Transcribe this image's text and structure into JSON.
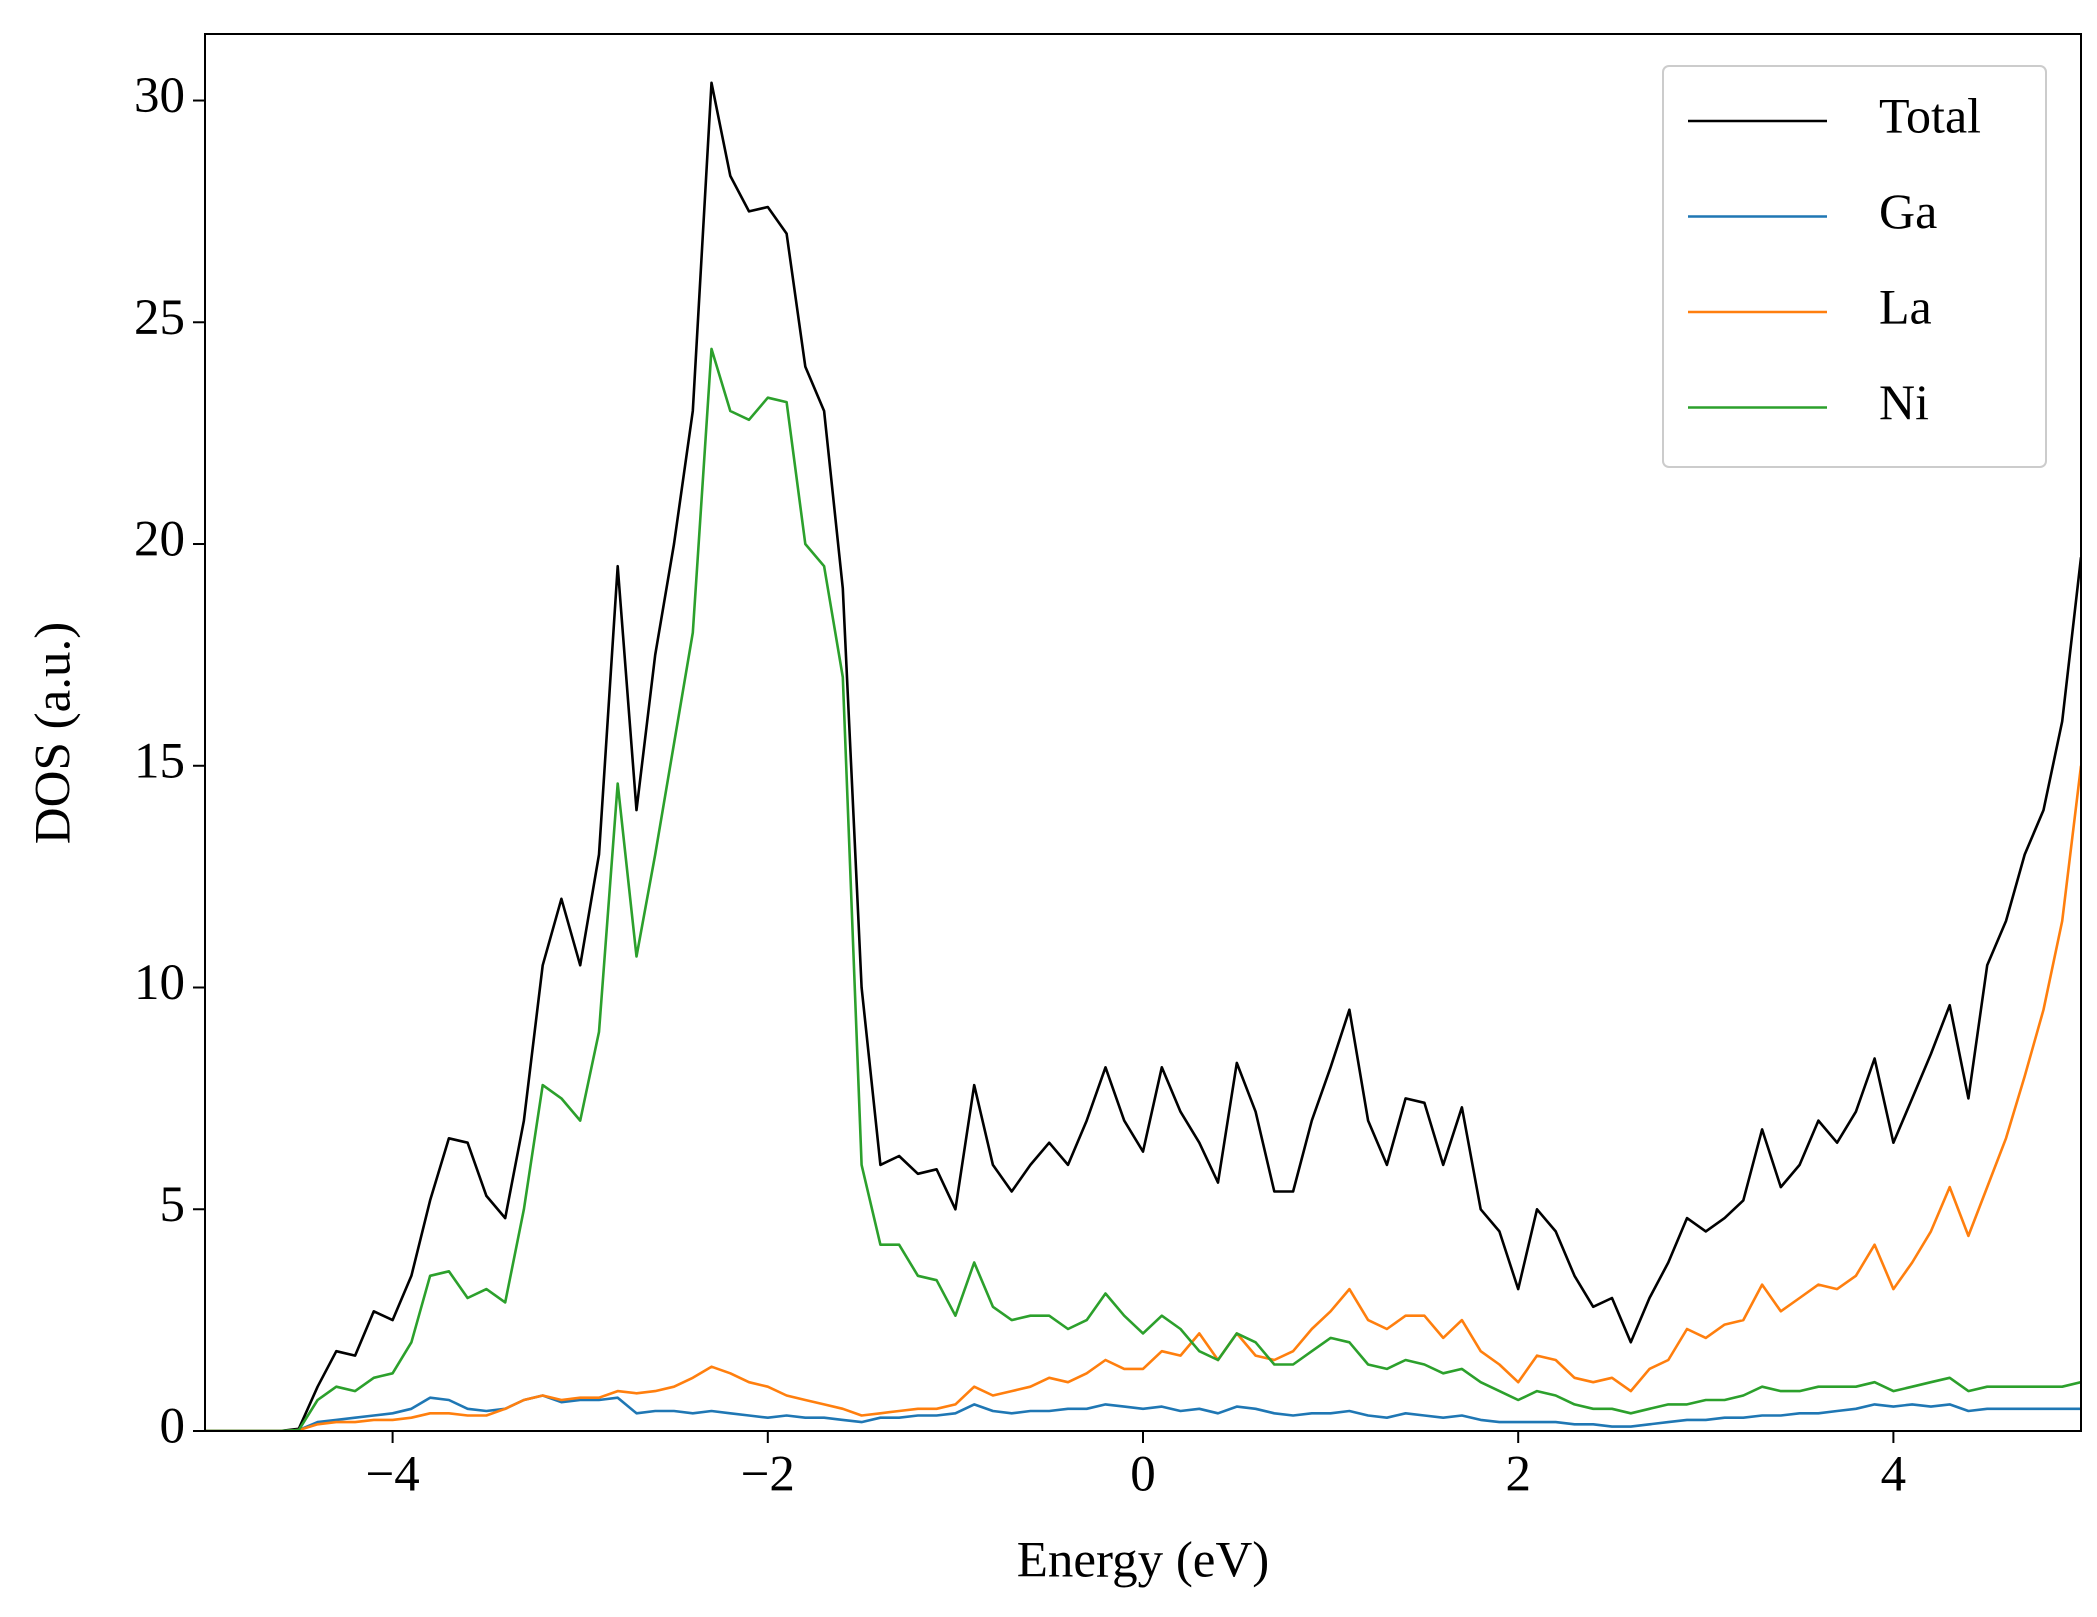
{
  "chart_data": {
    "type": "line",
    "xlabel": "Energy (eV)",
    "ylabel": "DOS (a.u.)",
    "xlim": [
      -5,
      5
    ],
    "ylim": [
      0,
      31.5
    ],
    "xticks": [
      {
        "value": -4,
        "label": "−4"
      },
      {
        "value": -2,
        "label": "−2"
      },
      0,
      2,
      4
    ],
    "yticks": [
      0,
      5,
      10,
      15,
      20,
      25,
      30
    ],
    "legend": "upper right",
    "x": [
      -5,
      -4.9,
      -4.8,
      -4.7,
      -4.6,
      -4.5,
      -4.4,
      -4.3,
      -4.2,
      -4.1,
      -4,
      -3.9,
      -3.8,
      -3.7,
      -3.6,
      -3.5,
      -3.4,
      -3.3,
      -3.2,
      -3.1,
      -3,
      -2.9,
      -2.8,
      -2.7,
      -2.6,
      -2.5,
      -2.4,
      -2.3,
      -2.2,
      -2.1,
      -2,
      -1.9,
      -1.8,
      -1.7,
      -1.6,
      -1.5,
      -1.4,
      -1.3,
      -1.2,
      -1.1,
      -1,
      -0.9,
      -0.8,
      -0.7,
      -0.6,
      -0.5,
      -0.4,
      -0.3,
      -0.2,
      -0.1,
      0,
      0.1,
      0.2,
      0.3,
      0.4,
      0.5,
      0.6,
      0.7,
      0.8,
      0.9,
      1,
      1.1,
      1.2,
      1.3,
      1.4,
      1.5,
      1.6,
      1.7,
      1.8,
      1.9,
      2,
      2.1,
      2.2,
      2.3,
      2.4,
      2.5,
      2.6,
      2.7,
      2.8,
      2.9,
      3,
      3.1,
      3.2,
      3.3,
      3.4,
      3.5,
      3.6,
      3.7,
      3.8,
      3.9,
      4,
      4.1,
      4.2,
      4.3,
      4.4,
      4.5,
      4.6,
      4.7,
      4.8,
      4.9,
      5
    ],
    "series": [
      {
        "name": "Total",
        "color": "#000000",
        "values": [
          0,
          0,
          0,
          0,
          0,
          0.05,
          1.0,
          1.8,
          1.7,
          2.7,
          2.5,
          3.5,
          5.2,
          6.6,
          6.5,
          5.3,
          4.8,
          7.0,
          10.5,
          12.0,
          10.5,
          13.0,
          19.5,
          14.0,
          17.5,
          20.0,
          23.0,
          30.4,
          28.3,
          27.5,
          27.6,
          27.0,
          24.0,
          23.0,
          19.0,
          10.0,
          6.0,
          6.2,
          5.8,
          5.9,
          5.0,
          7.8,
          6.0,
          5.4,
          6.0,
          6.5,
          6.0,
          7.0,
          8.2,
          7.0,
          6.3,
          8.2,
          7.2,
          6.5,
          5.6,
          8.3,
          7.2,
          5.4,
          5.4,
          7.0,
          8.2,
          9.5,
          7.0,
          6.0,
          7.5,
          7.4,
          6.0,
          7.3,
          5.0,
          4.5,
          3.2,
          5.0,
          4.5,
          3.5,
          2.8,
          3.0,
          2.0,
          3.0,
          3.8,
          4.8,
          4.5,
          4.8,
          5.2,
          6.8,
          5.5,
          6.0,
          7.0,
          6.5,
          7.2,
          8.4,
          6.5,
          7.5,
          8.5,
          9.6,
          7.5,
          10.5,
          11.5,
          13.0,
          14.0,
          16.0,
          19.7
        ]
      },
      {
        "name": "Ga",
        "color": "#1f77b4",
        "values": [
          0,
          0,
          0,
          0,
          0,
          0.02,
          0.2,
          0.25,
          0.3,
          0.35,
          0.4,
          0.5,
          0.75,
          0.7,
          0.5,
          0.45,
          0.5,
          0.7,
          0.8,
          0.65,
          0.7,
          0.7,
          0.75,
          0.4,
          0.45,
          0.45,
          0.4,
          0.45,
          0.4,
          0.35,
          0.3,
          0.35,
          0.3,
          0.3,
          0.25,
          0.2,
          0.3,
          0.3,
          0.35,
          0.35,
          0.4,
          0.6,
          0.45,
          0.4,
          0.45,
          0.45,
          0.5,
          0.5,
          0.6,
          0.55,
          0.5,
          0.55,
          0.45,
          0.5,
          0.4,
          0.55,
          0.5,
          0.4,
          0.35,
          0.4,
          0.4,
          0.45,
          0.35,
          0.3,
          0.4,
          0.35,
          0.3,
          0.35,
          0.25,
          0.2,
          0.2,
          0.2,
          0.2,
          0.15,
          0.15,
          0.1,
          0.1,
          0.15,
          0.2,
          0.25,
          0.25,
          0.3,
          0.3,
          0.35,
          0.35,
          0.4,
          0.4,
          0.45,
          0.5,
          0.6,
          0.55,
          0.6,
          0.55,
          0.6,
          0.45,
          0.5,
          0.5,
          0.5,
          0.5,
          0.5,
          0.5
        ]
      },
      {
        "name": "La",
        "color": "#ff7f0e",
        "values": [
          0,
          0,
          0,
          0,
          0,
          0.02,
          0.15,
          0.2,
          0.2,
          0.25,
          0.25,
          0.3,
          0.4,
          0.4,
          0.35,
          0.35,
          0.5,
          0.7,
          0.8,
          0.7,
          0.75,
          0.75,
          0.9,
          0.85,
          0.9,
          1.0,
          1.2,
          1.45,
          1.3,
          1.1,
          1.0,
          0.8,
          0.7,
          0.6,
          0.5,
          0.35,
          0.4,
          0.45,
          0.5,
          0.5,
          0.6,
          1.0,
          0.8,
          0.9,
          1.0,
          1.2,
          1.1,
          1.3,
          1.6,
          1.4,
          1.4,
          1.8,
          1.7,
          2.2,
          1.6,
          2.2,
          1.7,
          1.6,
          1.8,
          2.3,
          2.7,
          3.2,
          2.5,
          2.3,
          2.6,
          2.6,
          2.1,
          2.5,
          1.8,
          1.5,
          1.1,
          1.7,
          1.6,
          1.2,
          1.1,
          1.2,
          0.9,
          1.4,
          1.6,
          2.3,
          2.1,
          2.4,
          2.5,
          3.3,
          2.7,
          3.0,
          3.3,
          3.2,
          3.5,
          4.2,
          3.2,
          3.8,
          4.5,
          5.5,
          4.4,
          5.5,
          6.6,
          8.0,
          9.5,
          11.5,
          15.0
        ]
      },
      {
        "name": "Ni",
        "color": "#2ca02c",
        "values": [
          0,
          0,
          0,
          0,
          0,
          0.02,
          0.7,
          1.0,
          0.9,
          1.2,
          1.3,
          2.0,
          3.5,
          3.6,
          3.0,
          3.2,
          2.9,
          5.0,
          7.8,
          7.5,
          7.0,
          9.0,
          14.6,
          10.7,
          13.0,
          15.5,
          18.0,
          24.4,
          23.0,
          22.8,
          23.3,
          23.2,
          20.0,
          19.5,
          17.0,
          6.0,
          4.2,
          4.2,
          3.5,
          3.4,
          2.6,
          3.8,
          2.8,
          2.5,
          2.6,
          2.6,
          2.3,
          2.5,
          3.1,
          2.6,
          2.2,
          2.6,
          2.3,
          1.8,
          1.6,
          2.2,
          2.0,
          1.5,
          1.5,
          1.8,
          2.1,
          2.0,
          1.5,
          1.4,
          1.6,
          1.5,
          1.3,
          1.4,
          1.1,
          0.9,
          0.7,
          0.9,
          0.8,
          0.6,
          0.5,
          0.5,
          0.4,
          0.5,
          0.6,
          0.6,
          0.7,
          0.7,
          0.8,
          1.0,
          0.9,
          0.9,
          1.0,
          1.0,
          1.0,
          1.1,
          0.9,
          1.0,
          1.1,
          1.2,
          0.9,
          1.0,
          1.0,
          1.0,
          1.0,
          1.0,
          1.1
        ]
      }
    ]
  }
}
